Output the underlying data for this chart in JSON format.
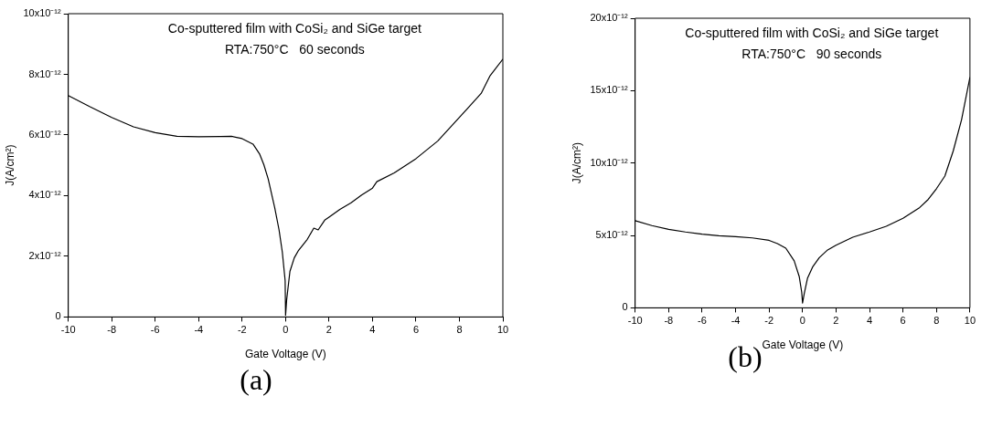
{
  "chart_data": [
    {
      "type": "line",
      "title": "Co-sputtered film with CoSi₂ and SiGe target",
      "subtitle": "RTA:750°C   60 seconds",
      "xlabel": "Gate Voltage (V)",
      "ylabel": "J(A/cm²)",
      "annotations": [
        "(a)"
      ],
      "grid": false,
      "legend": false,
      "marker": "none",
      "line_style": "solid",
      "xlim": [
        -10,
        10
      ],
      "xticks": [
        -10,
        -8,
        -6,
        -4,
        -2,
        0,
        2,
        4,
        6,
        8,
        10
      ],
      "ylim": [
        0,
        1e-11
      ],
      "yticks": [
        {
          "value": 0,
          "label": "0"
        },
        {
          "value": 2e-12,
          "label": "2x10⁻¹²"
        },
        {
          "value": 4e-12,
          "label": "4x10⁻¹²"
        },
        {
          "value": 6e-12,
          "label": "6x10⁻¹²"
        },
        {
          "value": 8e-12,
          "label": "8x10⁻¹²"
        },
        {
          "value": 1e-11,
          "label": "10x10⁻¹²"
        }
      ],
      "series": [
        {
          "color": "#000000",
          "x": [
            -10,
            -9,
            -8,
            -7,
            -6,
            -5,
            -4,
            -3,
            -2.5,
            -2,
            -1.5,
            -1.2,
            -1,
            -0.8,
            -0.5,
            -0.3,
            -0.15,
            -0.02,
            0,
            0.05,
            0.2,
            0.4,
            0.6,
            1,
            1.3,
            1.5,
            1.8,
            2,
            2.5,
            3,
            3.5,
            4,
            4.2,
            5,
            6,
            7,
            8,
            9,
            9.4,
            10
          ],
          "values": [
            7.3e-12,
            6.93e-12,
            6.58e-12,
            6.27e-12,
            6.08e-12,
            5.96e-12,
            5.94e-12,
            5.95e-12,
            5.96e-12,
            5.88e-12,
            5.7e-12,
            5.38e-12,
            5.02e-12,
            4.55e-12,
            3.6e-12,
            2.87e-12,
            2.14e-12,
            1.2e-12,
            5e-14,
            5.7e-13,
            1.5e-12,
            1.95e-12,
            2.2e-12,
            2.56e-12,
            2.93e-12,
            2.87e-12,
            3.19e-12,
            3.29e-12,
            3.55e-12,
            3.76e-12,
            4.02e-12,
            4.25e-12,
            4.46e-12,
            4.75e-12,
            5.22e-12,
            5.8e-12,
            6.58e-12,
            7.37e-12,
            7.94e-12,
            8.5e-12
          ]
        }
      ]
    },
    {
      "type": "line",
      "title": "Co-sputtered film with CoSi₂ and SiGe target",
      "subtitle": "RTA:750°C   90 seconds",
      "xlabel": "Gate Voltage (V)",
      "ylabel": "J(A/cm²)",
      "annotations": [
        "(b)"
      ],
      "grid": false,
      "legend": false,
      "marker": "none",
      "line_style": "solid",
      "xlim": [
        -10,
        10
      ],
      "xticks": [
        -10,
        -8,
        -6,
        -4,
        -2,
        0,
        2,
        4,
        6,
        8,
        10
      ],
      "ylim": [
        0,
        2e-11
      ],
      "yticks": [
        {
          "value": 0,
          "label": "0"
        },
        {
          "value": 5e-12,
          "label": "5x10⁻¹²"
        },
        {
          "value": 1e-11,
          "label": "10x10⁻¹²"
        },
        {
          "value": 1.5e-11,
          "label": "15x10⁻¹²"
        },
        {
          "value": 2e-11,
          "label": "20x10⁻¹²"
        }
      ],
      "series": [
        {
          "color": "#000000",
          "x": [
            -10,
            -9,
            -8,
            -7,
            -6,
            -5,
            -4,
            -3,
            -2,
            -1.5,
            -1,
            -0.5,
            -0.2,
            -0.05,
            0,
            0.1,
            0.3,
            0.6,
            1,
            1.5,
            2,
            3,
            4,
            5,
            6,
            7,
            7.5,
            8,
            8.5,
            9,
            9.5,
            10
          ],
          "values": [
            6.02e-12,
            5.68e-12,
            5.42e-12,
            5.24e-12,
            5.09e-12,
            4.98e-12,
            4.92e-12,
            4.83e-12,
            4.66e-12,
            4.44e-12,
            4.12e-12,
            3.25e-12,
            2.17e-12,
            1.08e-12,
            3.3e-13,
            9.8e-13,
            2.06e-12,
            2.82e-12,
            3.47e-12,
            4e-12,
            4.33e-12,
            4.88e-12,
            5.24e-12,
            5.63e-12,
            6.18e-12,
            6.93e-12,
            7.48e-12,
            8.23e-12,
            9.1e-12,
            1.083e-11,
            1.3e-11,
            1.593e-11
          ]
        }
      ]
    }
  ]
}
